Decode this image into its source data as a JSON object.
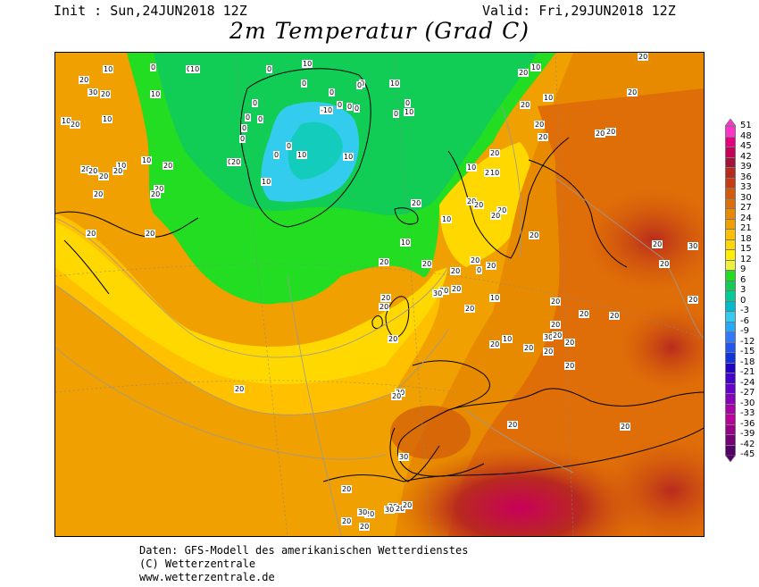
{
  "header": {
    "init": "Init : Sun,24JUN2018 12Z",
    "valid": "Valid: Fri,29JUN2018 12Z",
    "title": "2m Temperatur (Grad C)"
  },
  "legend": {
    "labels": [
      "51",
      "48",
      "45",
      "42",
      "39",
      "36",
      "33",
      "30",
      "27",
      "24",
      "21",
      "18",
      "15",
      "12",
      "9",
      "6",
      "3",
      "0",
      "-3",
      "-6",
      "-9",
      "-12",
      "-15",
      "-18",
      "-21",
      "-24",
      "-27",
      "-30",
      "-33",
      "-36",
      "-39",
      "-42",
      "-45"
    ],
    "colors": [
      "#ff33cc",
      "#e6007f",
      "#c8005a",
      "#a8103c",
      "#b82a1e",
      "#c83c14",
      "#d25a0a",
      "#e06e08",
      "#e88a00",
      "#f0a000",
      "#ffc000",
      "#ffd800",
      "#ffee00",
      "#f0f040",
      "#22dd22",
      "#11cc55",
      "#00cc99",
      "#00bbcc",
      "#33ccee",
      "#22aaff",
      "#3377ff",
      "#2255ee",
      "#1133dd",
      "#2200cc",
      "#4400cc",
      "#6600cc",
      "#8800bb",
      "#aa00aa",
      "#bb0099",
      "#990088",
      "#770077",
      "#550066"
    ]
  },
  "contour_labels": [
    "10",
    "0",
    "0",
    "10",
    "10",
    "0",
    "10",
    "0",
    "20",
    "10",
    "20",
    "10",
    "0",
    "0",
    "0",
    "0",
    "0",
    "10",
    "20",
    "10",
    "10",
    "0",
    "0",
    "10",
    "0",
    "-10",
    "0",
    "0",
    "0",
    "0",
    "0",
    "0",
    "10",
    "20",
    "20",
    "20",
    "20",
    "20",
    "20",
    "20",
    "20",
    "30",
    "20",
    "20",
    "20",
    "10",
    "10",
    "0",
    "0",
    "10",
    "20",
    "20",
    "10",
    "20",
    "20",
    "0",
    "10",
    "20",
    "20",
    "20",
    "10",
    "20",
    "20",
    "10",
    "20",
    "20",
    "20",
    "20",
    "30",
    "20",
    "20",
    "20",
    "10",
    "10",
    "20",
    "20",
    "20",
    "20",
    "20",
    "20",
    "20",
    "20",
    "20",
    "20",
    "20",
    "30",
    "20",
    "20",
    "20",
    "20",
    "20",
    "10",
    "20",
    "30",
    "20",
    "20",
    "20",
    "20",
    "20",
    "20",
    "30",
    "20",
    "20",
    "20",
    "20",
    "30",
    "20",
    "20",
    "20",
    "30",
    "20",
    "20",
    "20",
    "20",
    "20",
    "20"
  ],
  "credits": {
    "line1": "Daten: GFS-Modell des amerikanischen Wetterdienstes",
    "line2": "(C) Wetterzentrale",
    "line3": "www.wetterzentrale.de"
  }
}
